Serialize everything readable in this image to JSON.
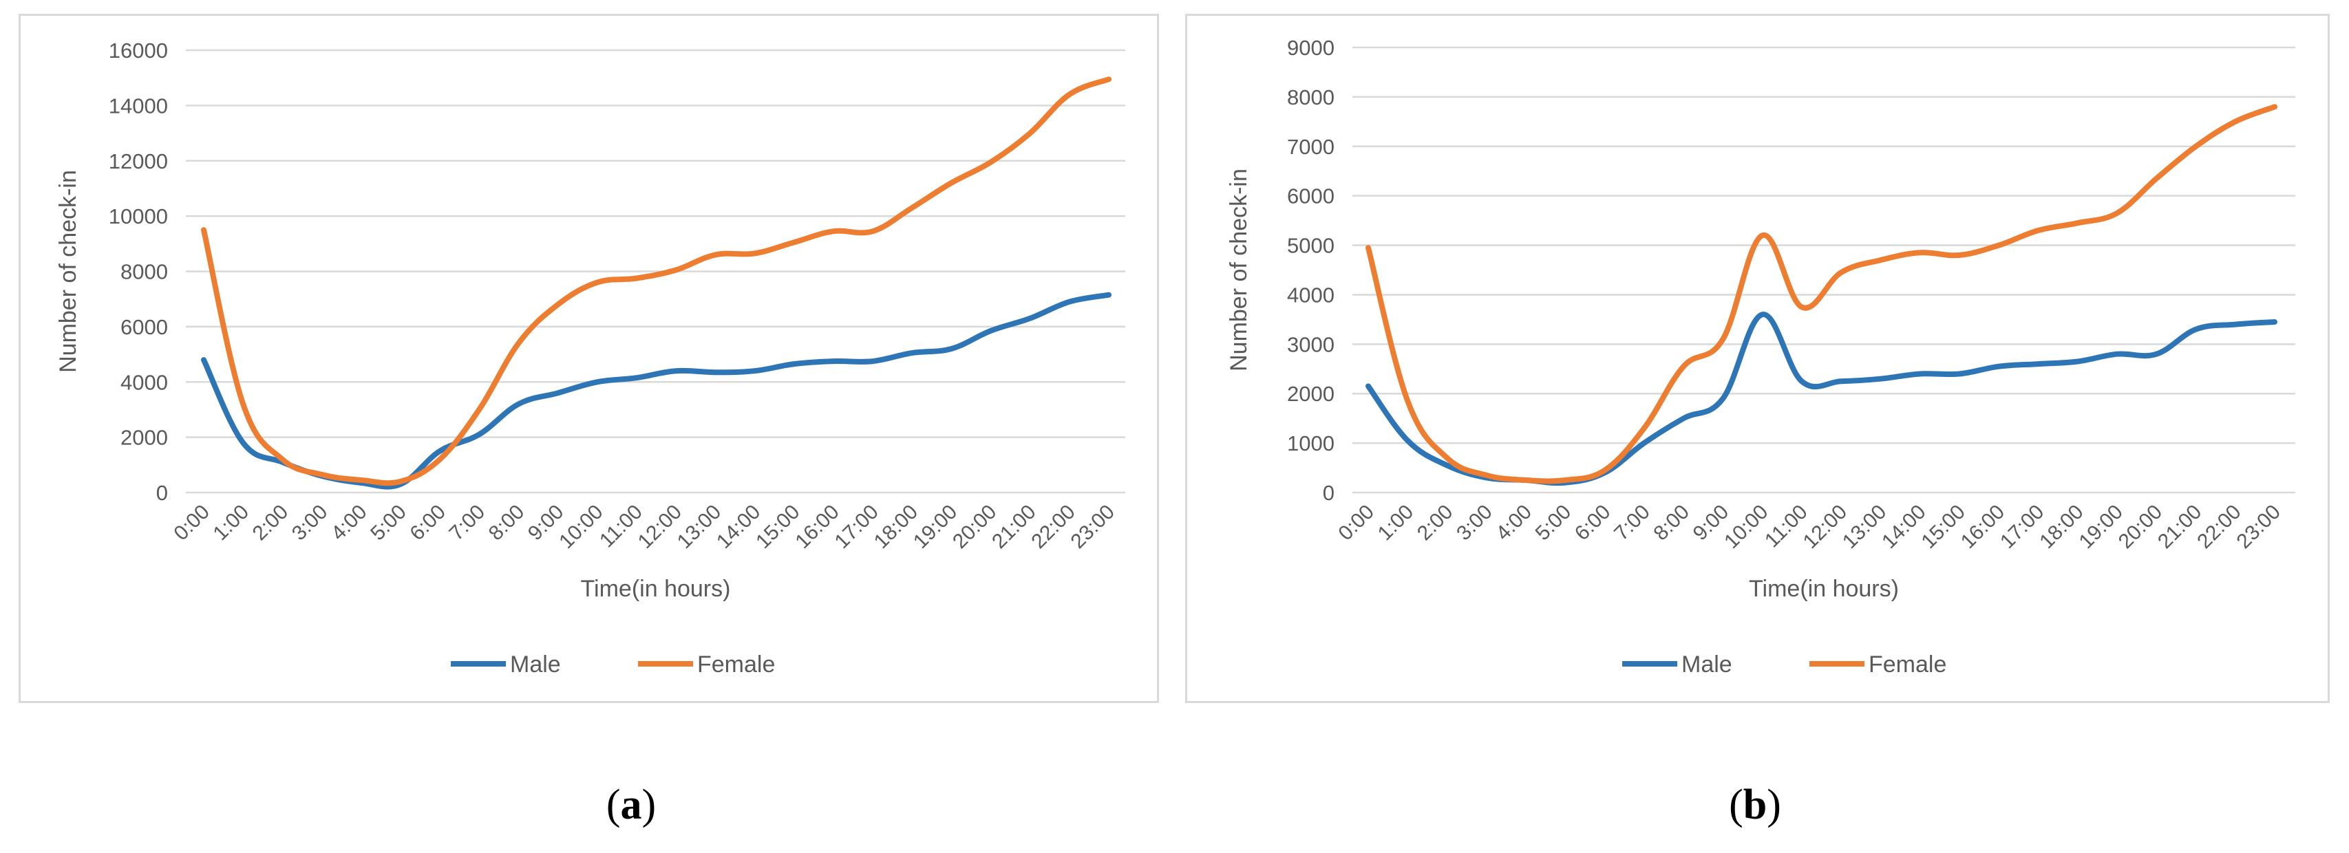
{
  "chart_data": [
    {
      "type": "line",
      "panel": "a",
      "caption": "a",
      "xlabel": "Time(in hours)",
      "ylabel": "Number of check-in",
      "ylim": [
        0,
        16000
      ],
      "yticks": [
        0,
        2000,
        4000,
        6000,
        8000,
        10000,
        12000,
        14000,
        16000
      ],
      "x": [
        "0:00",
        "1:00",
        "2:00",
        "3:00",
        "4:00",
        "5:00",
        "6:00",
        "7:00",
        "8:00",
        "9:00",
        "10:00",
        "11:00",
        "12:00",
        "13:00",
        "14:00",
        "15:00",
        "16:00",
        "17:00",
        "18:00",
        "19:00",
        "20:00",
        "21:00",
        "22:00",
        "23:00"
      ],
      "grid": true,
      "legend": "bottom",
      "series": [
        {
          "name": "Male",
          "color": "#2e75b6",
          "values": [
            4800,
            1800,
            1100,
            600,
            350,
            300,
            1500,
            2100,
            3200,
            3600,
            4000,
            4150,
            4400,
            4350,
            4400,
            4650,
            4750,
            4750,
            5050,
            5200,
            5850,
            6300,
            6900,
            7150
          ]
        },
        {
          "name": "Female",
          "color": "#ed7d31",
          "values": [
            9500,
            3200,
            1200,
            650,
            450,
            400,
            1200,
            3000,
            5400,
            6800,
            7600,
            7750,
            8050,
            8600,
            8650,
            9050,
            9450,
            9450,
            10300,
            11200,
            11950,
            13000,
            14400,
            14950
          ]
        }
      ]
    },
    {
      "type": "line",
      "panel": "b",
      "caption": "b",
      "xlabel": "Time(in hours)",
      "ylabel": "Number of check-in",
      "ylim": [
        0,
        9000
      ],
      "yticks": [
        0,
        1000,
        2000,
        3000,
        4000,
        5000,
        6000,
        7000,
        8000,
        9000
      ],
      "x": [
        "0:00",
        "1:00",
        "2:00",
        "3:00",
        "4:00",
        "5:00",
        "6:00",
        "7:00",
        "8:00",
        "9:00",
        "10:00",
        "11:00",
        "12:00",
        "13:00",
        "14:00",
        "15:00",
        "16:00",
        "17:00",
        "18:00",
        "19:00",
        "20:00",
        "21:00",
        "22:00",
        "23:00"
      ],
      "grid": true,
      "legend": "bottom",
      "series": [
        {
          "name": "Male",
          "color": "#2e75b6",
          "values": [
            2150,
            1050,
            550,
            300,
            250,
            200,
            400,
            1000,
            1500,
            1900,
            3600,
            2250,
            2250,
            2300,
            2400,
            2400,
            2550,
            2600,
            2650,
            2800,
            2800,
            3300,
            3400,
            3450
          ]
        },
        {
          "name": "Female",
          "color": "#ed7d31",
          "values": [
            4950,
            1850,
            700,
            350,
            250,
            250,
            450,
            1300,
            2550,
            3100,
            5200,
            3750,
            4450,
            4700,
            4850,
            4800,
            5000,
            5300,
            5450,
            5650,
            6350,
            7000,
            7500,
            7800
          ]
        }
      ]
    }
  ]
}
